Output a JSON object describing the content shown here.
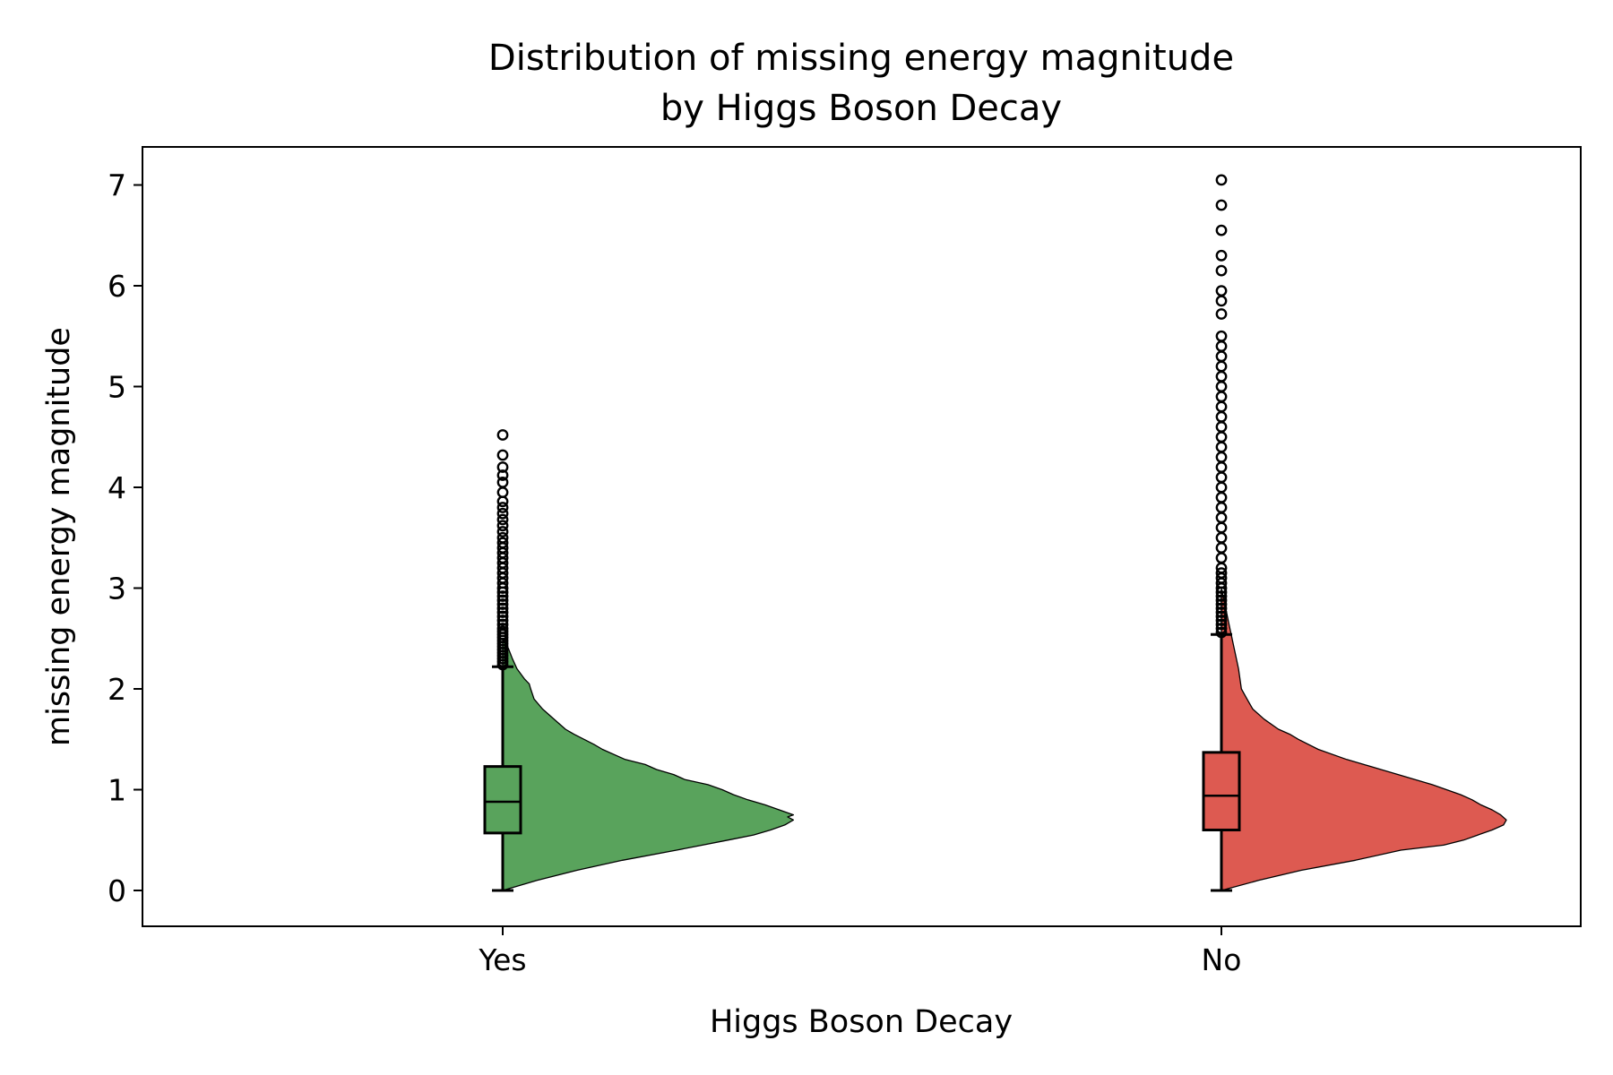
{
  "chart_data": {
    "type": "violin",
    "title": [
      "Distribution of missing energy magnitude",
      "by Higgs Boson Decay"
    ],
    "xlabel": "Higgs Boson Decay",
    "ylabel": "missing energy magnitude",
    "ylim": [
      -0.35,
      7.35
    ],
    "yticks": [
      0,
      1,
      2,
      3,
      4,
      5,
      6,
      7
    ],
    "grid": false,
    "categories": [
      {
        "name": "Yes",
        "color": "#59a35c",
        "box": {
          "whisker_low": 0.0,
          "q1": 0.57,
          "median": 0.88,
          "q3": 1.23,
          "whisker_high": 2.22
        },
        "outliers": [
          2.24,
          2.27,
          2.3,
          2.33,
          2.36,
          2.39,
          2.42,
          2.45,
          2.48,
          2.51,
          2.54,
          2.57,
          2.6,
          2.64,
          2.68,
          2.72,
          2.76,
          2.8,
          2.84,
          2.88,
          2.92,
          2.96,
          3.0,
          3.05,
          3.1,
          3.15,
          3.2,
          3.25,
          3.3,
          3.35,
          3.4,
          3.45,
          3.5,
          3.56,
          3.62,
          3.68,
          3.74,
          3.8,
          3.86,
          3.95,
          4.05,
          4.12,
          4.2,
          4.32,
          4.52
        ],
        "density": {
          "y": [
            0.0,
            0.1,
            0.2,
            0.3,
            0.4,
            0.5,
            0.55,
            0.6,
            0.65,
            0.7,
            0.73,
            0.75,
            0.8,
            0.85,
            0.9,
            0.95,
            1.0,
            1.05,
            1.1,
            1.15,
            1.2,
            1.25,
            1.3,
            1.4,
            1.45,
            1.55,
            1.6,
            1.7,
            1.8,
            1.9,
            2.0,
            2.05,
            2.1,
            2.2,
            2.3,
            2.4,
            2.5
          ],
          "width": [
            0.0,
            0.12,
            0.26,
            0.42,
            0.61,
            0.79,
            0.88,
            0.94,
            0.99,
            1.02,
            1.0,
            1.02,
            0.97,
            0.92,
            0.86,
            0.81,
            0.77,
            0.72,
            0.64,
            0.6,
            0.54,
            0.5,
            0.43,
            0.35,
            0.32,
            0.25,
            0.22,
            0.18,
            0.14,
            0.11,
            0.098,
            0.093,
            0.076,
            0.05,
            0.034,
            0.02,
            0.0
          ]
        }
      },
      {
        "name": "No",
        "color": "#dd5a51",
        "box": {
          "whisker_low": 0.0,
          "q1": 0.6,
          "median": 0.94,
          "q3": 1.37,
          "whisker_high": 2.54
        },
        "outliers": [
          2.56,
          2.6,
          2.64,
          2.68,
          2.72,
          2.76,
          2.8,
          2.84,
          2.88,
          2.92,
          2.96,
          3.0,
          3.05,
          3.1,
          3.15,
          3.2,
          3.3,
          3.4,
          3.5,
          3.6,
          3.7,
          3.8,
          3.9,
          4.0,
          4.1,
          4.2,
          4.3,
          4.4,
          4.5,
          4.6,
          4.7,
          4.8,
          4.9,
          5.0,
          5.1,
          5.2,
          5.3,
          5.4,
          5.5,
          5.72,
          5.85,
          5.95,
          6.15,
          6.3,
          6.55,
          6.8,
          7.05
        ],
        "density": {
          "y": [
            0.0,
            0.1,
            0.2,
            0.3,
            0.4,
            0.45,
            0.5,
            0.55,
            0.6,
            0.65,
            0.7,
            0.75,
            0.8,
            0.85,
            0.9,
            0.95,
            1.0,
            1.05,
            1.1,
            1.15,
            1.2,
            1.25,
            1.3,
            1.4,
            1.5,
            1.55,
            1.6,
            1.7,
            1.8,
            1.9,
            2.0,
            2.2,
            2.4,
            2.6,
            2.8,
            3.0
          ],
          "width": [
            0.0,
            0.13,
            0.28,
            0.47,
            0.63,
            0.78,
            0.85,
            0.9,
            0.95,
            0.99,
            1.0,
            0.98,
            0.95,
            0.91,
            0.88,
            0.84,
            0.79,
            0.74,
            0.68,
            0.62,
            0.56,
            0.5,
            0.44,
            0.34,
            0.27,
            0.24,
            0.2,
            0.15,
            0.11,
            0.09,
            0.07,
            0.06,
            0.045,
            0.03,
            0.015,
            0.0
          ]
        }
      }
    ]
  }
}
